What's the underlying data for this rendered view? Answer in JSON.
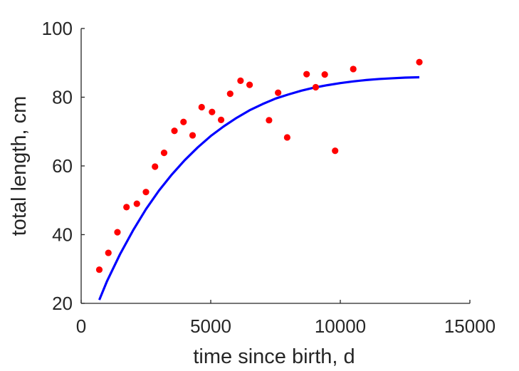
{
  "chart_data": {
    "type": "scatter",
    "xlabel": "time since birth, d",
    "ylabel": "total length, cm",
    "xlim": [
      0,
      15000
    ],
    "ylim": [
      20,
      100
    ],
    "x_ticks": [
      "0",
      "5000",
      "10000",
      "15000"
    ],
    "y_ticks": [
      "20",
      "40",
      "60",
      "80",
      "100"
    ],
    "grid": false,
    "series": [
      {
        "kind": "points",
        "color": "#ff0000",
        "points": [
          [
            700,
            29.8
          ],
          [
            1050,
            34.7
          ],
          [
            1400,
            40.7
          ],
          [
            1750,
            48.0
          ],
          [
            2150,
            49.0
          ],
          [
            2500,
            52.4
          ],
          [
            2850,
            59.8
          ],
          [
            3200,
            63.8
          ],
          [
            3600,
            70.2
          ],
          [
            3950,
            72.8
          ],
          [
            4300,
            68.9
          ],
          [
            4650,
            77.1
          ],
          [
            5050,
            75.7
          ],
          [
            5400,
            73.4
          ],
          [
            5750,
            81.0
          ],
          [
            6150,
            84.8
          ],
          [
            6500,
            83.6
          ],
          [
            7250,
            73.3
          ],
          [
            7600,
            81.3
          ],
          [
            7950,
            68.3
          ],
          [
            8700,
            86.7
          ],
          [
            9050,
            82.9
          ],
          [
            9400,
            86.6
          ],
          [
            9800,
            64.4
          ],
          [
            10500,
            88.2
          ],
          [
            13050,
            90.2
          ]
        ]
      },
      {
        "kind": "curve",
        "color": "#0000ff",
        "points": [
          [
            700,
            21.0
          ],
          [
            1000,
            26.5
          ],
          [
            1500,
            34.3
          ],
          [
            2000,
            41.2
          ],
          [
            2500,
            47.4
          ],
          [
            3000,
            52.8
          ],
          [
            3500,
            57.5
          ],
          [
            4000,
            61.7
          ],
          [
            4500,
            65.4
          ],
          [
            5000,
            68.7
          ],
          [
            5500,
            71.5
          ],
          [
            6000,
            74.0
          ],
          [
            6500,
            76.2
          ],
          [
            7000,
            78.0
          ],
          [
            7500,
            79.6
          ],
          [
            8000,
            80.8
          ],
          [
            8500,
            81.9
          ],
          [
            9000,
            82.8
          ],
          [
            9500,
            83.5
          ],
          [
            10000,
            84.1
          ],
          [
            10500,
            84.6
          ],
          [
            11000,
            85.0
          ],
          [
            11500,
            85.3
          ],
          [
            12000,
            85.5
          ],
          [
            12500,
            85.7
          ],
          [
            13050,
            85.8
          ]
        ]
      }
    ]
  }
}
